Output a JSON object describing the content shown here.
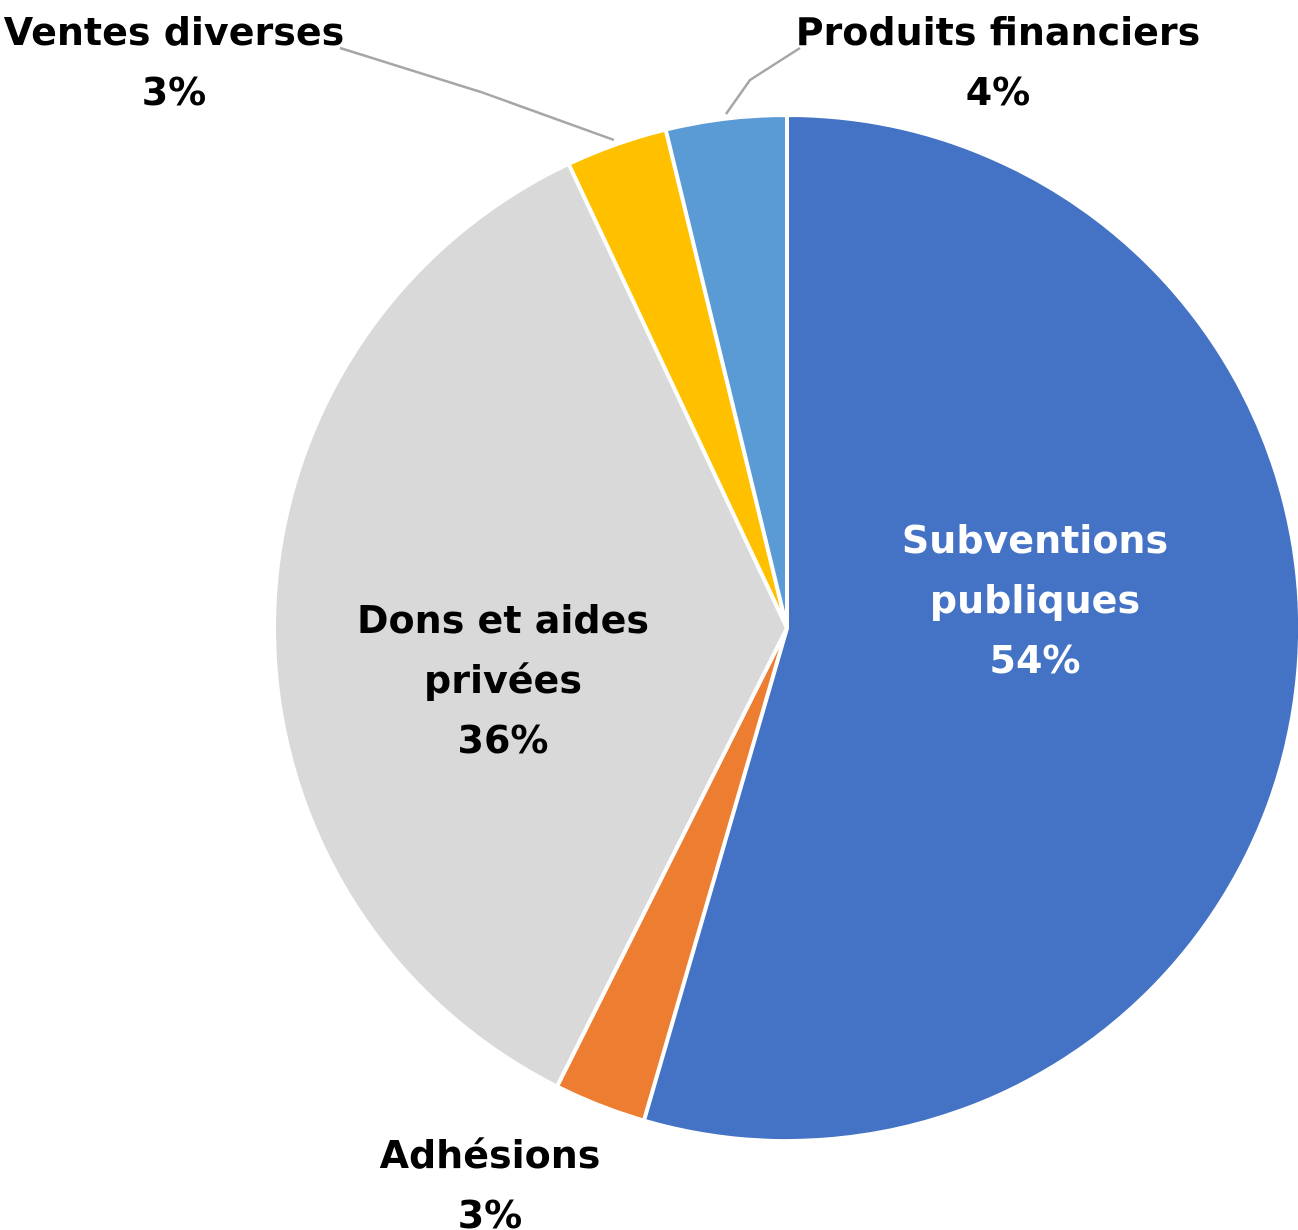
{
  "chart_data": {
    "type": "pie",
    "title": "",
    "start_angle_deg": 0,
    "direction": "clockwise",
    "slices": [
      {
        "label": [
          "Subventions",
          "publiques"
        ],
        "percent_label": "54%",
        "value": 54.5,
        "color": "#4472C4",
        "label_color": "#FFFFFF"
      },
      {
        "label": [
          "Adhésions"
        ],
        "percent_label": "3%",
        "value": 2.9,
        "color": "#ED7D31",
        "label_color": "#000000"
      },
      {
        "label": [
          "Dons et aides",
          "privées"
        ],
        "percent_label": "36%",
        "value": 35.6,
        "color": "#D9D9D9",
        "label_color": "#000000"
      },
      {
        "label": [
          "Ventes diverses"
        ],
        "percent_label": "3%",
        "value": 3.2,
        "color": "#FFC000",
        "label_color": "#000000"
      },
      {
        "label": [
          "Produits financiers"
        ],
        "percent_label": "4%",
        "value": 3.8,
        "color": "#5B9BD5",
        "label_color": "#000000"
      }
    ],
    "colors": {
      "slice_border": "#FFFFFF",
      "leader_line": "#A6A6A6"
    }
  }
}
